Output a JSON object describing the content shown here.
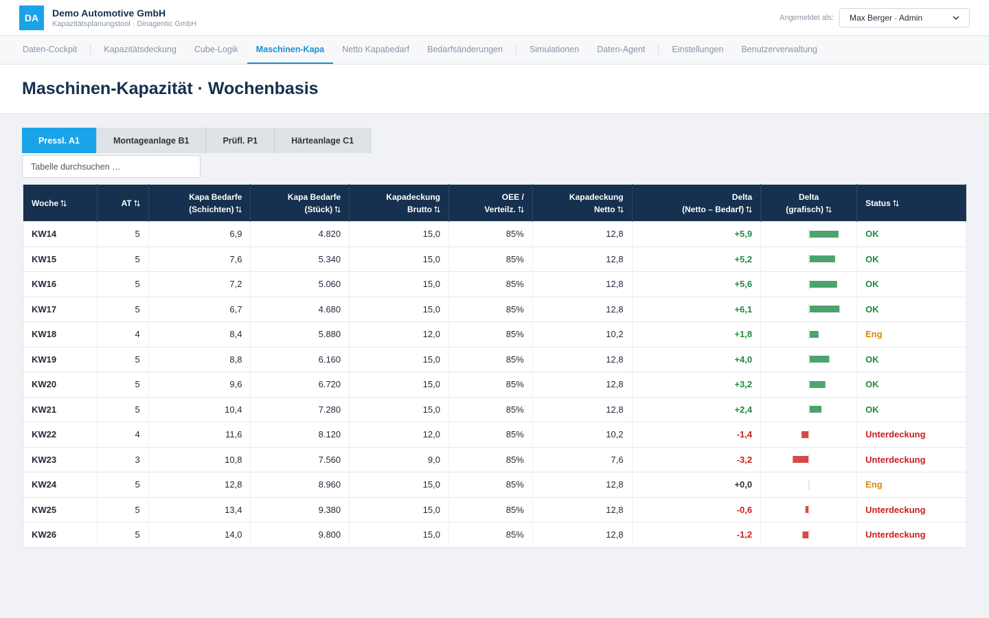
{
  "header": {
    "logo": "DA",
    "company": "Demo Automotive GmbH",
    "subtitle": "Kapazitätsplanungstool · Dinagentic GmbH",
    "login_label": "Angemeldet als:",
    "user": "Max Berger · Admin"
  },
  "nav": [
    [
      {
        "label": "Daten-Cockpit",
        "active": false
      }
    ],
    [
      {
        "label": "Kapazitätsdeckung",
        "active": false
      },
      {
        "label": "Cube-Logik",
        "active": false
      },
      {
        "label": "Maschinen-Kapa",
        "active": true
      },
      {
        "label": "Netto Kapabedarf",
        "active": false
      },
      {
        "label": "Bedarfsänderungen",
        "active": false
      }
    ],
    [
      {
        "label": "Simulationen",
        "active": false
      },
      {
        "label": "Daten-Agent",
        "active": false
      }
    ],
    [
      {
        "label": "Einstellungen",
        "active": false
      },
      {
        "label": "Benutzerverwaltung",
        "active": false
      }
    ]
  ],
  "page": {
    "title": "Maschinen-Kapazität · Wochenbasis"
  },
  "tabs": [
    {
      "label": "Pressl. A1",
      "active": true
    },
    {
      "label": "Montageanlage B1",
      "active": false
    },
    {
      "label": "Prüfl. P1",
      "active": false
    },
    {
      "label": "Härteanlage C1",
      "active": false
    }
  ],
  "search": {
    "placeholder": "Tabelle durchsuchen …"
  },
  "table": {
    "columns": [
      "Woche",
      "AT",
      "Kapa Bedarfe\n(Schichten)",
      "Kapa Bedarfe\n(Stück)",
      "Kapadeckung\nBrutto",
      "OEE /\nVerteilz.",
      "Kapadeckung\nNetto",
      "Delta\n(Netto – Bedarf)",
      "Delta\n(grafisch)",
      "Status"
    ],
    "rows": [
      {
        "cells": [
          "KW14",
          "5",
          "6,9",
          "4.820",
          "15,0",
          "85%",
          "12,8"
        ],
        "delta": {
          "value": 5.9,
          "label": "+5,9"
        },
        "status": "OK",
        "status_color": "#1e8a3e"
      },
      {
        "cells": [
          "KW15",
          "5",
          "7,6",
          "5.340",
          "15,0",
          "85%",
          "12,8"
        ],
        "delta": {
          "value": 5.2,
          "label": "+5,2"
        },
        "status": "OK",
        "status_color": "#1e8a3e"
      },
      {
        "cells": [
          "KW16",
          "5",
          "7,2",
          "5.060",
          "15,0",
          "85%",
          "12,8"
        ],
        "delta": {
          "value": 5.6,
          "label": "+5,6"
        },
        "status": "OK",
        "status_color": "#1e8a3e"
      },
      {
        "cells": [
          "KW17",
          "5",
          "6,7",
          "4.680",
          "15,0",
          "85%",
          "12,8"
        ],
        "delta": {
          "value": 6.1,
          "label": "+6,1"
        },
        "status": "OK",
        "status_color": "#1e8a3e"
      },
      {
        "cells": [
          "KW18",
          "4",
          "8,4",
          "5.880",
          "12,0",
          "85%",
          "10,2"
        ],
        "delta": {
          "value": 1.8,
          "label": "+1,8"
        },
        "status": "Eng",
        "status_color": "#d98a0b"
      },
      {
        "cells": [
          "KW19",
          "5",
          "8,8",
          "6.160",
          "15,0",
          "85%",
          "12,8"
        ],
        "delta": {
          "value": 4.0,
          "label": "+4,0"
        },
        "status": "OK",
        "status_color": "#1e8a3e"
      },
      {
        "cells": [
          "KW20",
          "5",
          "9,6",
          "6.720",
          "15,0",
          "85%",
          "12,8"
        ],
        "delta": {
          "value": 3.2,
          "label": "+3,2"
        },
        "status": "OK",
        "status_color": "#1e8a3e"
      },
      {
        "cells": [
          "KW21",
          "5",
          "10,4",
          "7.280",
          "15,0",
          "85%",
          "12,8"
        ],
        "delta": {
          "value": 2.4,
          "label": "+2,4"
        },
        "status": "OK",
        "status_color": "#1e8a3e"
      },
      {
        "cells": [
          "KW22",
          "4",
          "11,6",
          "8.120",
          "12,0",
          "85%",
          "10,2"
        ],
        "delta": {
          "value": -1.4,
          "label": "-1,4"
        },
        "status": "Unterdeckung",
        "status_color": "#c81e1e"
      },
      {
        "cells": [
          "KW23",
          "3",
          "10,8",
          "7.560",
          "9,0",
          "85%",
          "7,6"
        ],
        "delta": {
          "value": -3.2,
          "label": "-3,2"
        },
        "status": "Unterdeckung",
        "status_color": "#c81e1e"
      },
      {
        "cells": [
          "KW24",
          "5",
          "12,8",
          "8.960",
          "15,0",
          "85%",
          "12,8"
        ],
        "delta": {
          "value": 0.0,
          "label": "+0,0"
        },
        "status": "Eng",
        "status_color": "#d98a0b"
      },
      {
        "cells": [
          "KW25",
          "5",
          "13,4",
          "9.380",
          "15,0",
          "85%",
          "12,8"
        ],
        "delta": {
          "value": -0.6,
          "label": "-0,6"
        },
        "status": "Unterdeckung",
        "status_color": "#c81e1e"
      },
      {
        "cells": [
          "KW26",
          "5",
          "14,0",
          "9.800",
          "15,0",
          "85%",
          "12,8"
        ],
        "delta": {
          "value": -1.2,
          "label": "-1,2"
        },
        "status": "Unterdeckung",
        "status_color": "#c81e1e"
      }
    ]
  }
}
